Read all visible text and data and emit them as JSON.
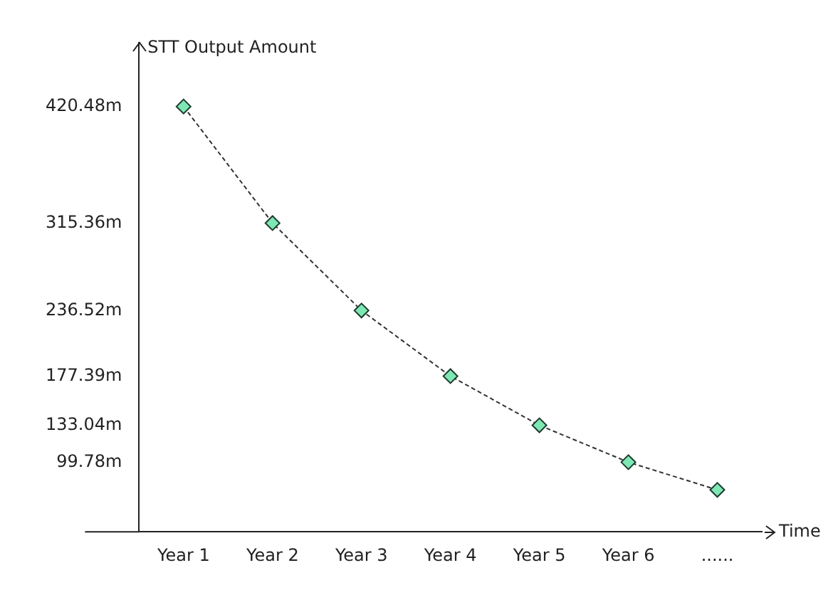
{
  "chart_data": {
    "type": "line",
    "xlabel": "Time",
    "ylabel": "STT Output Amount",
    "categories": [
      "Year 1",
      "Year 2",
      "Year 3",
      "Year 4",
      "Year 5",
      "Year 6",
      "......"
    ],
    "series": [
      {
        "color": "#333333",
        "values": [
          420.48,
          315.36,
          236.52,
          177.39,
          133.04,
          99.78,
          74.8
        ]
      }
    ],
    "ylim": [
      37,
      478
    ],
    "yticks": [
      {
        "value": 99.78,
        "label": "99.78m"
      },
      {
        "value": 133.04,
        "label": "133.04m"
      },
      {
        "value": 177.39,
        "label": "177.39m"
      },
      {
        "value": 236.52,
        "label": "236.52m"
      },
      {
        "value": 315.36,
        "label": "315.36m"
      },
      {
        "value": 420.48,
        "label": "420.48m"
      }
    ],
    "marker": "diamond",
    "line_style": "dashed",
    "grid": false,
    "legend": false
  }
}
